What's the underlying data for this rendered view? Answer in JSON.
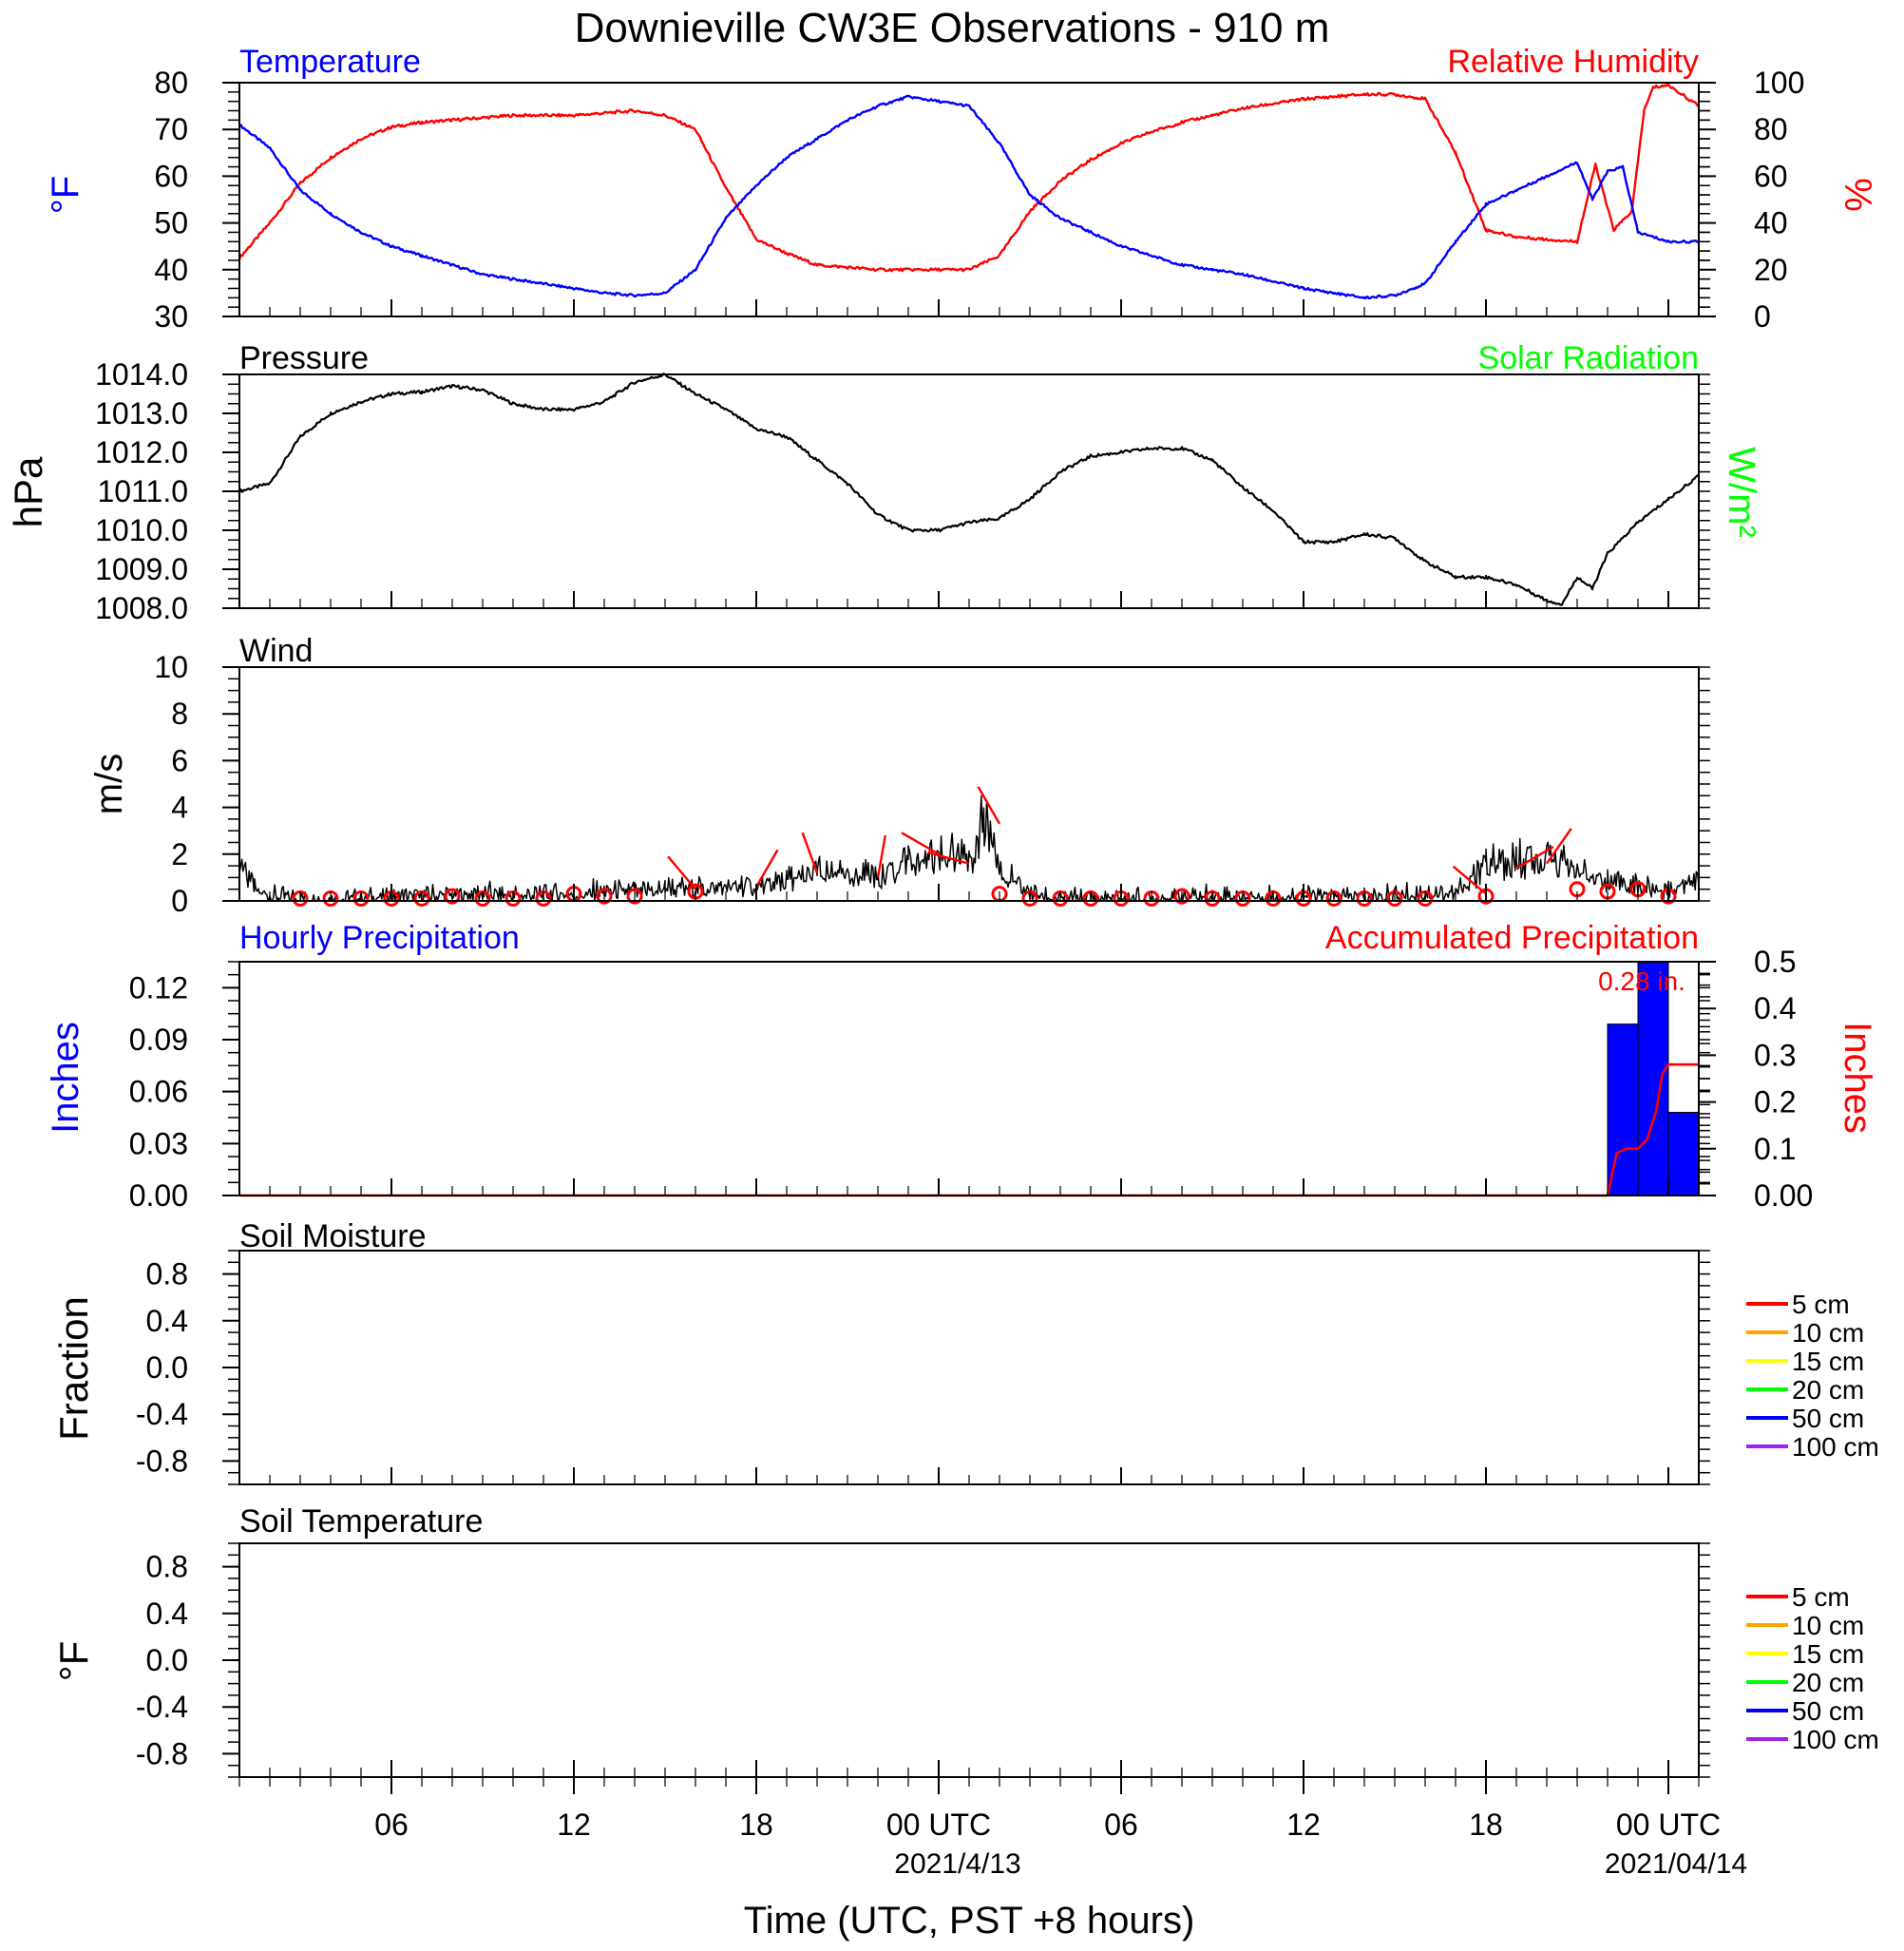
{
  "title": "Downieville CW3E Observations - 910 m",
  "xaxis": {
    "title": "Time (UTC, PST +8 hours)",
    "ticks": [
      "06",
      "12",
      "18",
      "00 UTC",
      "06",
      "12",
      "18",
      "00 UTC"
    ],
    "tick_hours": [
      6,
      12,
      18,
      24,
      30,
      36,
      42,
      48
    ],
    "dates": [
      "2021/4/13",
      "2021/04/14"
    ],
    "range_hours": [
      1,
      49
    ]
  },
  "colors": {
    "temperature": "#0000ff",
    "humidity": "#ff0000",
    "pressure": "#000000",
    "solar": "#00ff00",
    "wind": "#000000",
    "barb": "#ff0000",
    "hourly": "#0000ff",
    "accum": "#ff0000"
  },
  "chart_data": [
    {
      "type": "line",
      "panel": "temperature-humidity",
      "left_title": "Temperature",
      "right_title": "Relative Humidity",
      "ylabel_left": "°F",
      "ylabel_right": "%",
      "ylim_left": [
        30,
        80
      ],
      "yticks_left": [
        "30",
        "40",
        "50",
        "60",
        "70",
        "80"
      ],
      "ylim_right": [
        0,
        100
      ],
      "yticks_right": [
        "0",
        "20",
        "40",
        "60",
        "80",
        "100"
      ],
      "series": [
        {
          "name": "Temperature",
          "axis": "left",
          "x": [
            1,
            2,
            3,
            4,
            5,
            6,
            7,
            8,
            9,
            10,
            11,
            12,
            13,
            14,
            15,
            16,
            17,
            18,
            19,
            20,
            21,
            22,
            23,
            24,
            25,
            26,
            27,
            28,
            29,
            30,
            31,
            32,
            33,
            34,
            35,
            36,
            37,
            38,
            39,
            40,
            41,
            42,
            43,
            44,
            45,
            45.5,
            46,
            46.5,
            47,
            47.5,
            48,
            49
          ],
          "y": [
            71,
            66,
            57,
            52,
            48,
            45,
            43,
            41,
            39,
            38,
            37,
            36,
            35,
            34.5,
            35,
            40,
            51,
            58,
            64,
            68,
            72,
            75,
            77,
            76,
            75,
            67,
            56,
            51,
            48,
            45,
            43,
            41,
            40,
            39,
            37.5,
            36,
            35,
            34,
            34.5,
            37,
            46,
            54,
            57,
            60,
            63,
            55,
            61,
            62,
            48,
            47,
            46,
            46
          ]
        },
        {
          "name": "Relative Humidity",
          "axis": "right",
          "x": [
            1,
            2,
            3,
            4,
            5,
            6,
            7,
            8,
            9,
            10,
            11,
            12,
            13,
            14,
            15,
            16,
            17,
            18,
            19,
            20,
            21,
            22,
            23,
            24,
            25,
            26,
            27,
            28,
            29,
            30,
            31,
            32,
            33,
            34,
            35,
            36,
            37,
            38,
            39,
            40,
            41,
            42,
            43,
            44,
            45,
            45.6,
            46.2,
            46.8,
            47.2,
            47.5,
            48,
            49
          ],
          "y": [
            25,
            40,
            57,
            68,
            76,
            81,
            83,
            84,
            85,
            86,
            86,
            86,
            87,
            88,
            86,
            80,
            55,
            33,
            27,
            22,
            21,
            20,
            20,
            20,
            20,
            26,
            45,
            58,
            67,
            74,
            79,
            83,
            86,
            89,
            91,
            93,
            94,
            95,
            95,
            93,
            70,
            37,
            34,
            33,
            32,
            65,
            37,
            45,
            88,
            98,
            99,
            90
          ]
        }
      ]
    },
    {
      "type": "line",
      "panel": "pressure",
      "left_title": "Pressure",
      "right_title": "Solar Radiation",
      "ylabel_left": "hPa",
      "ylabel_right": "W/m²",
      "ylim": [
        1008.0,
        1014.0
      ],
      "yticks": [
        "1008.0",
        "1009.0",
        "1010.0",
        "1011.0",
        "1012.0",
        "1013.0",
        "1014.0"
      ],
      "series": [
        {
          "name": "Pressure",
          "x": [
            1,
            2,
            3,
            4,
            5,
            6,
            7,
            8,
            9,
            10,
            11,
            12,
            13,
            14,
            15,
            16,
            17,
            18,
            19,
            20,
            21,
            22,
            23,
            24,
            25,
            26,
            27,
            28,
            29,
            30,
            31,
            32,
            33,
            34,
            35,
            36,
            37,
            38,
            39,
            40,
            41,
            42,
            43,
            44,
            44.5,
            45,
            45.5,
            46,
            47,
            48,
            49
          ],
          "y": [
            1011.0,
            1011.2,
            1012.4,
            1013.0,
            1013.3,
            1013.5,
            1013.55,
            1013.7,
            1013.6,
            1013.25,
            1013.1,
            1013.1,
            1013.3,
            1013.8,
            1014.0,
            1013.5,
            1013.1,
            1012.6,
            1012.4,
            1011.8,
            1011.2,
            1010.4,
            1010.0,
            1010.0,
            1010.2,
            1010.3,
            1010.8,
            1011.5,
            1011.9,
            1012.0,
            1012.1,
            1012.1,
            1011.8,
            1011.1,
            1010.5,
            1009.7,
            1009.7,
            1009.9,
            1009.8,
            1009.2,
            1008.8,
            1008.8,
            1008.6,
            1008.2,
            1008.1,
            1008.8,
            1008.5,
            1009.4,
            1010.2,
            1010.8,
            1011.4
          ]
        }
      ]
    },
    {
      "type": "line",
      "panel": "wind",
      "left_title": "Wind",
      "ylabel_left": "m/s",
      "ylim": [
        0,
        10
      ],
      "yticks": [
        "0",
        "2",
        "4",
        "6",
        "8",
        "10"
      ],
      "series": [
        {
          "name": "Wind speed",
          "x": [
            1,
            1.5,
            2,
            3,
            4,
            5,
            6,
            7,
            8,
            9,
            10,
            11,
            12,
            13,
            14,
            15,
            16,
            17,
            18,
            19,
            20,
            21,
            22,
            23,
            24,
            25,
            25.5,
            26,
            27,
            28,
            29,
            30,
            31,
            32,
            33,
            34,
            35,
            36,
            37,
            38,
            39,
            40,
            41,
            42,
            43,
            44,
            45,
            46,
            47,
            48,
            49
          ],
          "y": [
            2.0,
            0.6,
            0.2,
            0.1,
            0.1,
            0.1,
            0.2,
            0.2,
            0.3,
            0.3,
            0.2,
            0.3,
            0.3,
            0.4,
            0.4,
            0.5,
            0.5,
            0.6,
            0.6,
            0.9,
            1.2,
            1.1,
            1.0,
            1.9,
            2.0,
            1.6,
            3.3,
            1.2,
            0.3,
            0.1,
            0.1,
            0.1,
            0.1,
            0.2,
            0.2,
            0.2,
            0.2,
            0.2,
            0.2,
            0.2,
            0.2,
            0.3,
            0.3,
            1.4,
            1.6,
            1.9,
            1.3,
            0.8,
            0.6,
            0.4,
            1.1
          ]
        }
      ],
      "markers_hours": [
        3,
        4,
        5,
        6,
        7,
        8,
        9,
        10,
        11,
        12,
        13,
        14,
        16,
        26,
        27,
        28,
        29,
        30,
        31,
        32,
        33,
        34,
        35,
        36,
        37,
        38,
        39,
        40,
        42,
        45,
        46,
        47,
        48
      ],
      "markers_y": [
        0.1,
        0.1,
        0.1,
        0.1,
        0.1,
        0.2,
        0.1,
        0.1,
        0.1,
        0.3,
        0.2,
        0.2,
        0.4,
        0.3,
        0.1,
        0.1,
        0.1,
        0.1,
        0.1,
        0.2,
        0.1,
        0.1,
        0.1,
        0.1,
        0.1,
        0.1,
        0.1,
        0.1,
        0.2,
        0.5,
        0.4,
        0.5,
        0.2
      ]
    },
    {
      "type": "bar",
      "panel": "precipitation",
      "left_title": "Hourly Precipitation",
      "right_title": "Accumulated Precipitation",
      "annotation": "0.28 in.",
      "ylabel_left": "Inches",
      "ylabel_right": "Inches",
      "ylim_left": [
        0,
        0.135
      ],
      "yticks_left": [
        "0.00",
        "0.03",
        "0.06",
        "0.09",
        "0.12"
      ],
      "ylim_right": [
        0,
        0.5
      ],
      "yticks_right": [
        "0.00",
        "0.1",
        "0.2",
        "0.3",
        "0.4",
        "0.5"
      ],
      "bars": {
        "start_hours": [
          46,
          47,
          48
        ],
        "values": [
          0.099,
          0.135,
          0.048
        ]
      },
      "series": [
        {
          "name": "Accumulated Precipitation",
          "axis": "right",
          "x": [
            1,
            46.0,
            46.3,
            46.6,
            47.0,
            47.3,
            47.6,
            47.8,
            48.0,
            48.2,
            49
          ],
          "y": [
            0,
            0,
            0.09,
            0.1,
            0.1,
            0.12,
            0.18,
            0.26,
            0.28,
            0.28,
            0.28
          ]
        }
      ]
    },
    {
      "type": "line",
      "panel": "soil-moisture",
      "left_title": "Soil Moisture",
      "ylabel_left": "Fraction",
      "ylim": [
        -1,
        1
      ],
      "yticks": [
        "-0.8",
        "-0.4",
        "0.0",
        "0.4",
        "0.8"
      ],
      "legend": [
        "5 cm",
        "10 cm",
        "15 cm",
        "20 cm",
        "50 cm",
        "100 cm"
      ],
      "legend_colors": [
        "#ff0000",
        "#ffa500",
        "#ffff00",
        "#00ff00",
        "#0000ff",
        "#a020f0"
      ]
    },
    {
      "type": "line",
      "panel": "soil-temperature",
      "left_title": "Soil Temperature",
      "ylabel_left": "°F",
      "ylim": [
        -1,
        1
      ],
      "yticks": [
        "-0.8",
        "-0.4",
        "0.0",
        "0.4",
        "0.8"
      ],
      "legend": [
        "5 cm",
        "10 cm",
        "15 cm",
        "20 cm",
        "50 cm",
        "100 cm"
      ],
      "legend_colors": [
        "#ff0000",
        "#ffa500",
        "#ffff00",
        "#00ff00",
        "#0000ff",
        "#a020f0"
      ]
    }
  ]
}
